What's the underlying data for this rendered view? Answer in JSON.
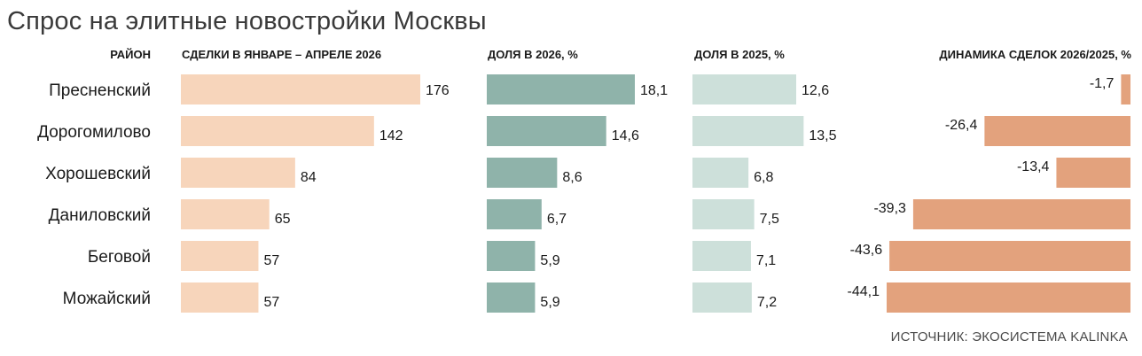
{
  "title": "Спрос на элитные новостройки Москвы",
  "source": "ИСТОЧНИК: ЭКОСИСТЕМА KALINKA",
  "colors": {
    "deals": "#f7d5bb",
    "share2026": "#8fb3aa",
    "share2025": "#cde0da",
    "dynamics": "#e3a27d"
  },
  "chart_data": {
    "type": "bar",
    "categories": [
      "Пресненский",
      "Дорогомилово",
      "Хорошевский",
      "Даниловский",
      "Беговой",
      "Можайский"
    ],
    "category_header": "РАЙОН",
    "series": [
      {
        "name": "СДЕЛКИ В ЯНВАРЕ – АПРЕЛЕ 2026",
        "values": [
          176,
          142,
          84,
          65,
          57,
          57
        ],
        "labels": [
          "176",
          "142",
          "84",
          "65",
          "57",
          "57"
        ]
      },
      {
        "name": "ДОЛЯ В 2026, %",
        "values": [
          18.1,
          14.6,
          8.6,
          6.7,
          5.9,
          5.9
        ],
        "labels": [
          "18,1",
          "14,6",
          "8,6",
          "6,7",
          "5,9",
          "5,9"
        ]
      },
      {
        "name": "ДОЛЯ В 2025, %",
        "values": [
          12.6,
          13.5,
          6.8,
          7.5,
          7.1,
          7.2
        ],
        "labels": [
          "12,6",
          "13,5",
          "6,8",
          "7,5",
          "7,1",
          "7,2"
        ]
      },
      {
        "name": "ДИНАМИКА СДЕЛОК 2026/2025, %",
        "values": [
          -1.7,
          -26.4,
          -13.4,
          -39.3,
          -43.6,
          -44.1
        ],
        "labels": [
          "-1,7",
          "-26,4",
          "-13,4",
          "-39,3",
          "-43,6",
          "-44,1"
        ]
      }
    ]
  }
}
